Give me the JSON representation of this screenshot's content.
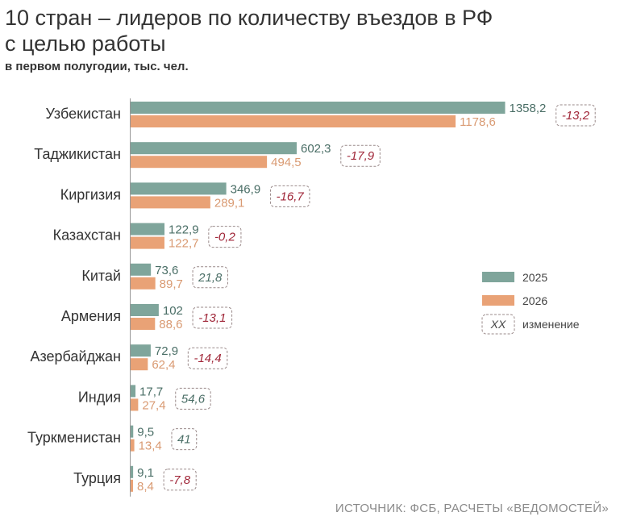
{
  "chart_data": {
    "type": "bar",
    "title": "10 стран – лидеров по количеству въездов в РФ с целью работы",
    "title_lines": [
      "10 стран – лидеров по количеству въездов в РФ",
      "с целью работы"
    ],
    "subtitle": "в первом полугодии, тыс. чел.",
    "categories": [
      "Узбекистан",
      "Таджикистан",
      "Киргизия",
      "Казахстан",
      "Китай",
      "Армения",
      "Азербайджан",
      "Индия",
      "Туркменистан",
      "Турция"
    ],
    "series": [
      {
        "name": "2025",
        "color": "#7fa59b",
        "values": [
          1358.2,
          602.3,
          346.9,
          122.9,
          73.6,
          102,
          72.9,
          17.7,
          9.5,
          9.1
        ],
        "labels": [
          "1358,2",
          "602,3",
          "346,9",
          "122,9",
          "73,6",
          "102",
          "72,9",
          "17,7",
          "9,5",
          "9,1"
        ]
      },
      {
        "name": "2026",
        "color": "#e9a276",
        "values": [
          1178.6,
          494.5,
          289.1,
          122.7,
          89.7,
          88.6,
          62.4,
          27.4,
          13.4,
          8.4
        ],
        "labels": [
          "1178,6",
          "494,5",
          "289,1",
          "122,7",
          "89,7",
          "88,6",
          "62,4",
          "27,4",
          "13,4",
          "8,4"
        ]
      }
    ],
    "change": {
      "name": "изменение",
      "key_sample": "XX",
      "values": [
        -13.2,
        -17.9,
        -16.7,
        -0.2,
        21.8,
        -13.1,
        -14.4,
        54.6,
        41,
        -7.8
      ],
      "labels": [
        "-13,2",
        "-17,9",
        "-16,7",
        "-0,2",
        "21,8",
        "-13,1",
        "-14,4",
        "54,6",
        "41",
        "-7,8"
      ]
    },
    "orientation": "horizontal",
    "legend": "right",
    "grid": false,
    "source": "ИСТОЧНИК: ФСБ, РАСЧЕТЫ «ВЕДОМОСТЕЙ»",
    "colors": {
      "title": "#333333",
      "category": "#333333",
      "label_2025": "#4a6e66",
      "label_2026": "#d99a72",
      "change_negative": "#a02638",
      "change_positive": "#4a6e66",
      "change_border": "#9a8a8a",
      "axis": "#999999",
      "source": "#8a8a8a"
    }
  }
}
